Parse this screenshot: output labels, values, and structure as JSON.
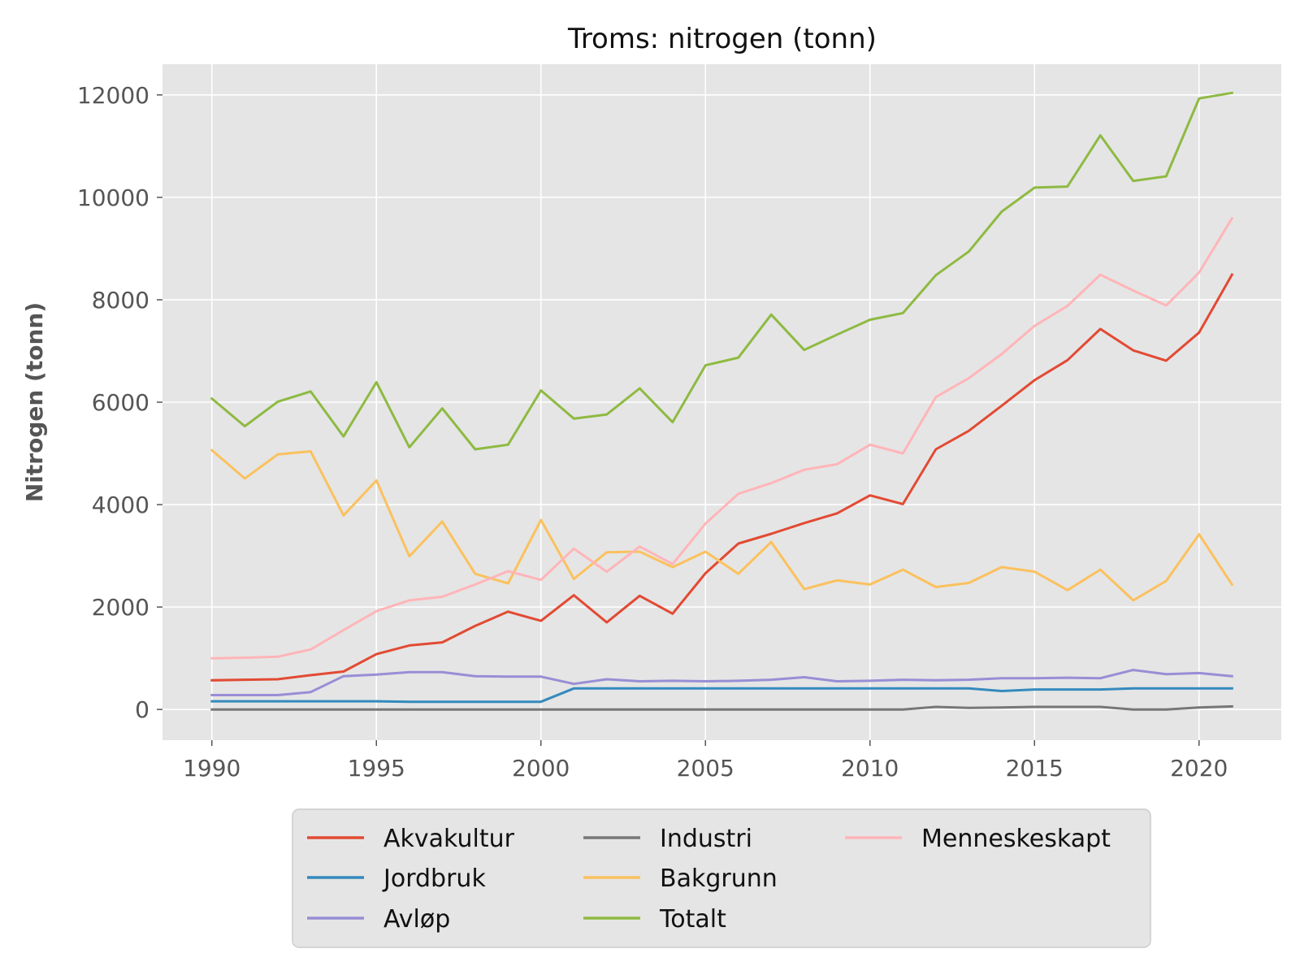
{
  "chart_data": {
    "type": "line",
    "title": "Troms: nitrogen (tonn)",
    "xlabel": "",
    "ylabel": "Nitrogen (tonn)",
    "xlim": [
      1988.5,
      2022.5
    ],
    "ylim": [
      -600,
      12600
    ],
    "grid": true,
    "legend_position": "below",
    "x_ticks": [
      1990,
      1995,
      2000,
      2005,
      2010,
      2015,
      2020
    ],
    "y_ticks": [
      0,
      2000,
      4000,
      6000,
      8000,
      10000,
      12000
    ],
    "x": [
      1990,
      1991,
      1992,
      1993,
      1994,
      1995,
      1996,
      1997,
      1998,
      1999,
      2000,
      2001,
      2002,
      2003,
      2004,
      2005,
      2006,
      2007,
      2008,
      2009,
      2010,
      2011,
      2012,
      2013,
      2014,
      2015,
      2016,
      2017,
      2018,
      2019,
      2020,
      2021
    ],
    "series": [
      {
        "name": "Akvakultur",
        "color": "#E24A33",
        "values": [
          570,
          580,
          590,
          670,
          740,
          1080,
          1250,
          1310,
          1630,
          1910,
          1730,
          2230,
          1700,
          2220,
          1870,
          2660,
          3240,
          3430,
          3640,
          3830,
          4180,
          4010,
          5080,
          5440,
          5930,
          6430,
          6820,
          7430,
          7010,
          6810,
          7360,
          8490
        ]
      },
      {
        "name": "Jordbruk",
        "color": "#348ABD",
        "values": [
          160,
          160,
          160,
          160,
          160,
          160,
          150,
          150,
          150,
          150,
          150,
          410,
          410,
          410,
          410,
          410,
          410,
          410,
          410,
          410,
          410,
          410,
          410,
          410,
          360,
          390,
          390,
          390,
          410,
          410,
          410,
          410
        ]
      },
      {
        "name": "Avløp",
        "color": "#988ED5",
        "values": [
          280,
          280,
          280,
          340,
          650,
          680,
          730,
          730,
          650,
          640,
          640,
          500,
          590,
          550,
          560,
          550,
          560,
          580,
          630,
          550,
          560,
          580,
          570,
          580,
          610,
          610,
          620,
          610,
          770,
          690,
          710,
          650
        ]
      },
      {
        "name": "Industri",
        "color": "#777777",
        "values": [
          0,
          0,
          0,
          0,
          0,
          0,
          0,
          0,
          0,
          0,
          0,
          0,
          0,
          0,
          0,
          0,
          0,
          0,
          0,
          0,
          0,
          0,
          50,
          30,
          40,
          50,
          50,
          50,
          0,
          0,
          40,
          60
        ]
      },
      {
        "name": "Bakgrunn",
        "color": "#FBC15E",
        "values": [
          5060,
          4510,
          4980,
          5040,
          3790,
          4470,
          2990,
          3670,
          2650,
          2460,
          3700,
          2550,
          3070,
          3080,
          2780,
          3080,
          2650,
          3270,
          2350,
          2520,
          2440,
          2730,
          2390,
          2470,
          2780,
          2690,
          2330,
          2730,
          2130,
          2510,
          3420,
          2440
        ]
      },
      {
        "name": "Totalt",
        "color": "#8EBA42",
        "values": [
          6070,
          5530,
          6010,
          6210,
          5330,
          6390,
          5120,
          5880,
          5080,
          5170,
          6230,
          5680,
          5760,
          6270,
          5610,
          6720,
          6870,
          7710,
          7020,
          7320,
          7610,
          7740,
          8480,
          8940,
          9720,
          10190,
          10210,
          11210,
          10320,
          10410,
          11930,
          12040
        ]
      },
      {
        "name": "Menneskeskapt",
        "color": "#FFB5B8",
        "values": [
          1000,
          1010,
          1030,
          1170,
          1550,
          1920,
          2130,
          2200,
          2440,
          2700,
          2530,
          3140,
          2690,
          3180,
          2840,
          3630,
          4210,
          4420,
          4680,
          4790,
          5170,
          5000,
          6100,
          6470,
          6940,
          7490,
          7880,
          8490,
          8180,
          7890,
          8530,
          9590
        ]
      }
    ]
  },
  "legend_order": [
    "Akvakultur",
    "Jordbruk",
    "Avløp",
    "Industri",
    "Bakgrunn",
    "Totalt",
    "Menneskeskapt"
  ]
}
